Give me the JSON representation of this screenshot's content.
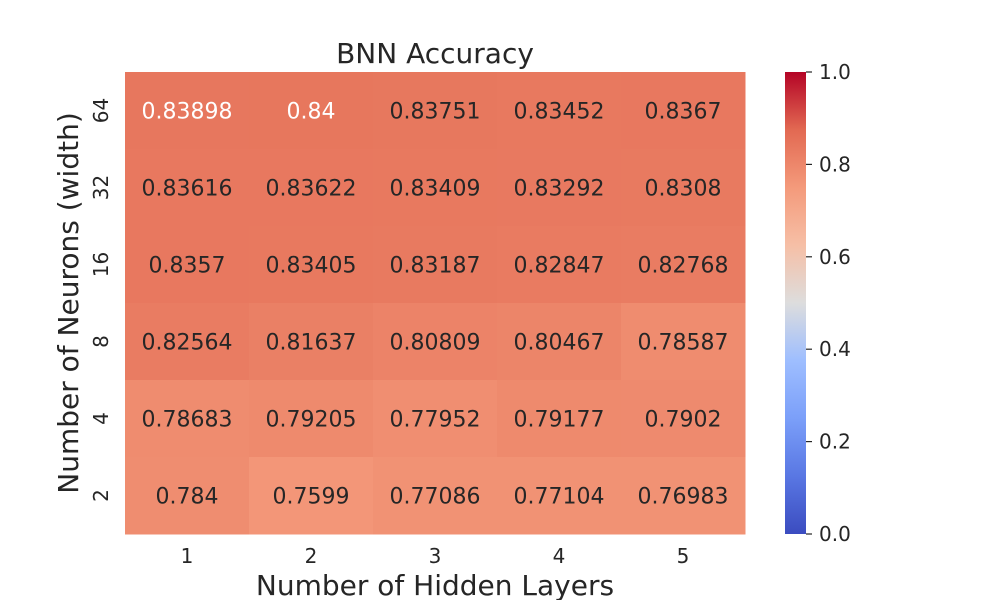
{
  "chart_data": {
    "type": "heatmap",
    "title": "BNN Accuracy",
    "xlabel": "Number of Hidden Layers",
    "ylabel": "Number of Neurons (width)",
    "x_categories": [
      "1",
      "2",
      "3",
      "4",
      "5"
    ],
    "y_categories": [
      "64",
      "32",
      "16",
      "8",
      "4",
      "2"
    ],
    "values": [
      [
        0.83898,
        0.84,
        0.83751,
        0.83452,
        0.8367
      ],
      [
        0.83616,
        0.83622,
        0.83409,
        0.83292,
        0.8308
      ],
      [
        0.8357,
        0.83405,
        0.83187,
        0.82847,
        0.82768
      ],
      [
        0.82564,
        0.81637,
        0.80809,
        0.80467,
        0.78587
      ],
      [
        0.78683,
        0.79205,
        0.77952,
        0.79177,
        0.7902
      ],
      [
        0.784,
        0.7599,
        0.77086,
        0.77104,
        0.76983
      ]
    ],
    "cell_labels": [
      [
        "0.83898",
        "0.84",
        "0.83751",
        "0.83452",
        "0.8367"
      ],
      [
        "0.83616",
        "0.83622",
        "0.83409",
        "0.83292",
        "0.8308"
      ],
      [
        "0.8357",
        "0.83405",
        "0.83187",
        "0.82847",
        "0.82768"
      ],
      [
        "0.82564",
        "0.81637",
        "0.80809",
        "0.80467",
        "0.78587"
      ],
      [
        "0.78683",
        "0.79205",
        "0.77952",
        "0.79177",
        "0.7902"
      ],
      [
        "0.784",
        "0.7599",
        "0.77086",
        "0.77104",
        "0.76983"
      ]
    ],
    "colormap": "coolwarm",
    "colorbar": {
      "range": [
        0.0,
        1.0
      ],
      "ticks": [
        0.0,
        0.2,
        0.4,
        0.6,
        0.8,
        1.0
      ],
      "tick_labels": [
        "0.0",
        "0.2",
        "0.4",
        "0.6",
        "0.8",
        "1.0"
      ]
    },
    "grid": false
  }
}
